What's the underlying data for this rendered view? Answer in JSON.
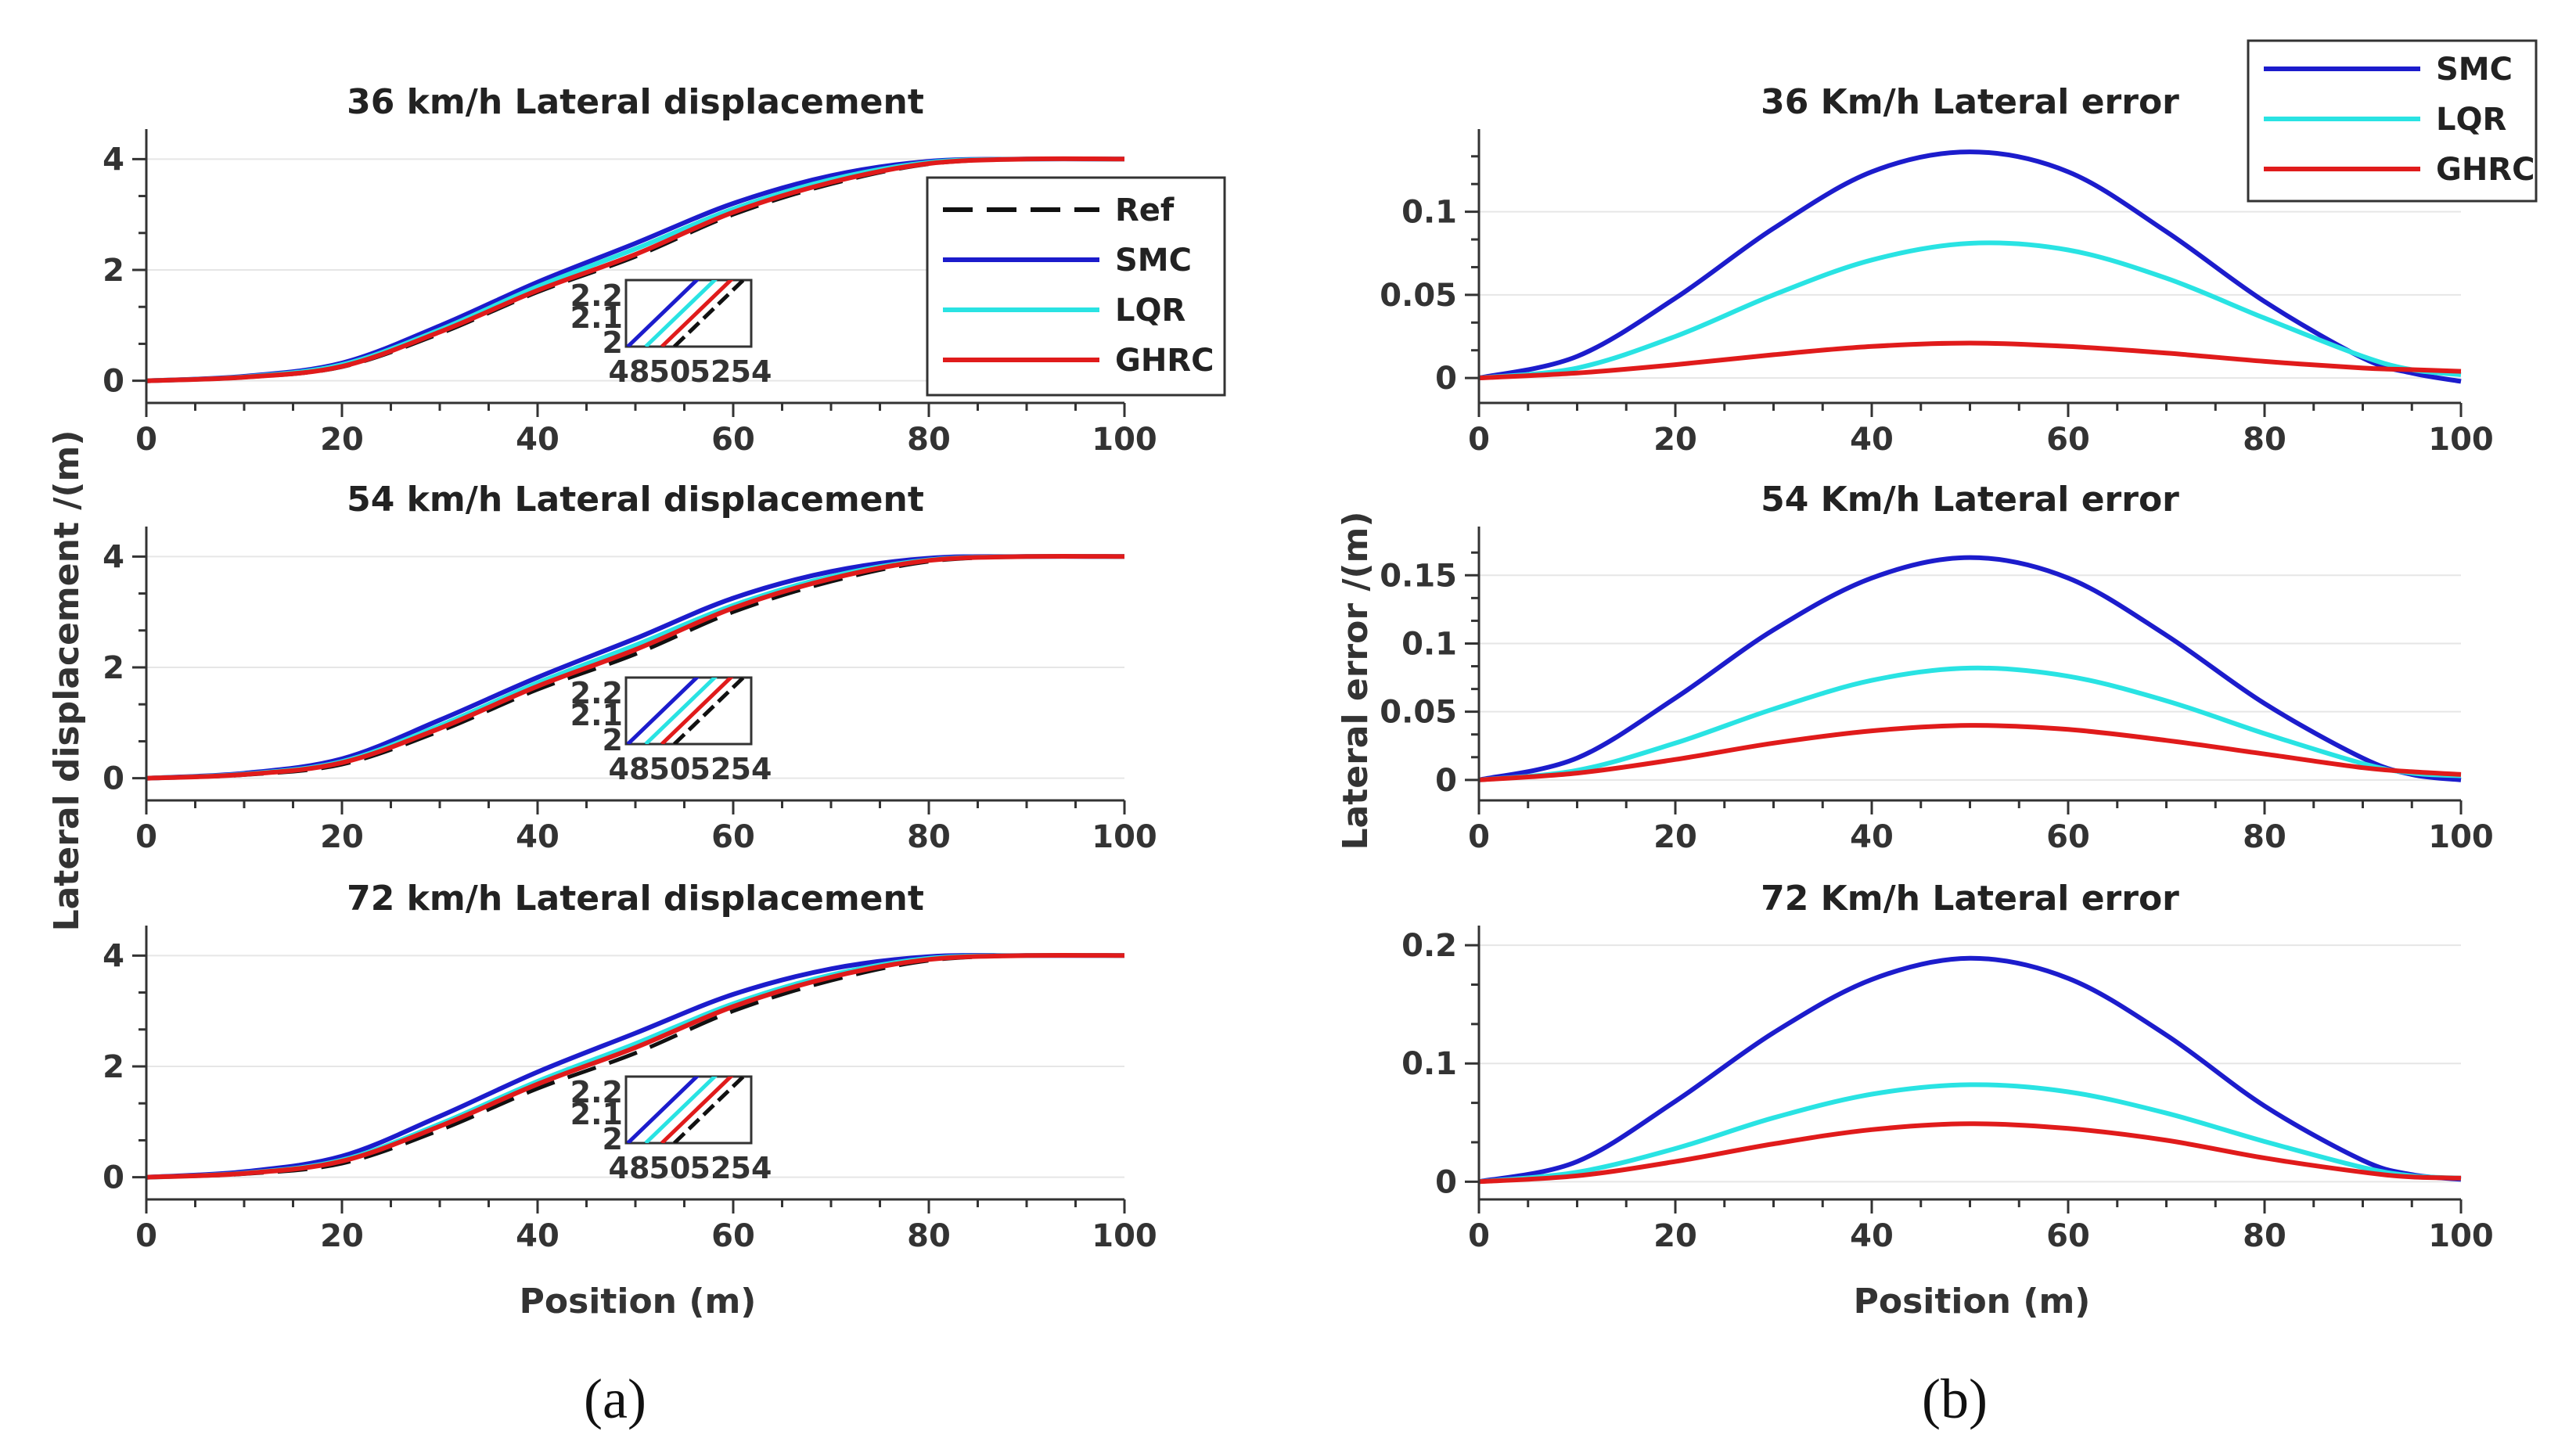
{
  "colors": {
    "Ref": "#111111",
    "SMC": "#1c1ccc",
    "LQR": "#29e3e3",
    "GHRC": "#e01b1b"
  },
  "panel_labels": {
    "a": "(a)",
    "b": "(b)"
  },
  "shared_labels": {
    "left_ylabel": "Lateral displacement /(m)",
    "right_ylabel": "Lateral error /(m)",
    "xlabel": "Position (m)"
  },
  "legends": {
    "left": [
      "Ref",
      "SMC",
      "LQR",
      "GHRC"
    ],
    "right": [
      "SMC",
      "LQR",
      "GHRC"
    ]
  },
  "chart_data": [
    {
      "id": "disp36",
      "type": "line",
      "title": "36 km/h Lateral displacement",
      "xlim": [
        0,
        100
      ],
      "ylim": [
        -0.4,
        4.4
      ],
      "xticks": [
        0,
        20,
        40,
        60,
        80,
        100
      ],
      "yticks": [
        0,
        2,
        4
      ],
      "x": [
        0,
        10,
        20,
        30,
        40,
        50,
        60,
        70,
        80,
        90,
        100
      ],
      "series": [
        {
          "name": "Ref",
          "values": [
            0,
            0.06,
            0.25,
            0.85,
            1.6,
            2.24,
            3.0,
            3.55,
            3.91,
            4.0,
            4.0
          ]
        },
        {
          "name": "SMC",
          "values": [
            0,
            0.08,
            0.32,
            0.99,
            1.78,
            2.48,
            3.2,
            3.7,
            3.96,
            4.0,
            4.0
          ]
        },
        {
          "name": "LQR",
          "values": [
            0,
            0.07,
            0.29,
            0.92,
            1.7,
            2.38,
            3.1,
            3.63,
            3.94,
            4.0,
            4.0
          ]
        },
        {
          "name": "GHRC",
          "values": [
            0,
            0.065,
            0.26,
            0.88,
            1.63,
            2.28,
            3.04,
            3.58,
            3.92,
            4.0,
            4.0
          ]
        }
      ],
      "inset": {
        "xticks": [
          48,
          50,
          52,
          54
        ],
        "yticks": [
          "2",
          "2.1",
          "2.2"
        ]
      }
    },
    {
      "id": "disp54",
      "type": "line",
      "title": "54 km/h Lateral displacement",
      "xlim": [
        0,
        100
      ],
      "ylim": [
        -0.4,
        4.4
      ],
      "xticks": [
        0,
        20,
        40,
        60,
        80,
        100
      ],
      "yticks": [
        0,
        2,
        4
      ],
      "x": [
        0,
        10,
        20,
        30,
        40,
        50,
        60,
        70,
        80,
        90,
        100
      ],
      "series": [
        {
          "name": "Ref",
          "values": [
            0,
            0.06,
            0.25,
            0.85,
            1.6,
            2.24,
            3.0,
            3.55,
            3.91,
            4.0,
            4.0
          ]
        },
        {
          "name": "SMC",
          "values": [
            0,
            0.09,
            0.35,
            1.05,
            1.82,
            2.52,
            3.25,
            3.73,
            3.97,
            4.0,
            4.0
          ]
        },
        {
          "name": "LQR",
          "values": [
            0,
            0.075,
            0.3,
            0.95,
            1.72,
            2.4,
            3.12,
            3.64,
            3.94,
            4.0,
            4.0
          ]
        },
        {
          "name": "GHRC",
          "values": [
            0,
            0.068,
            0.28,
            0.9,
            1.66,
            2.32,
            3.07,
            3.6,
            3.93,
            4.0,
            4.0
          ]
        }
      ],
      "inset": {
        "xticks": [
          48,
          50,
          52,
          54
        ],
        "yticks": [
          "2",
          "2.1",
          "2.2"
        ]
      }
    },
    {
      "id": "disp72",
      "type": "line",
      "title": "72 km/h Lateral displacement",
      "xlim": [
        0,
        100
      ],
      "ylim": [
        -0.4,
        4.4
      ],
      "xticks": [
        0,
        20,
        40,
        60,
        80,
        100
      ],
      "yticks": [
        0,
        2,
        4
      ],
      "x": [
        0,
        10,
        20,
        30,
        40,
        50,
        60,
        70,
        80,
        90,
        100
      ],
      "series": [
        {
          "name": "Ref",
          "values": [
            0,
            0.06,
            0.25,
            0.85,
            1.6,
            2.24,
            3.0,
            3.55,
            3.91,
            4.0,
            4.0
          ]
        },
        {
          "name": "SMC",
          "values": [
            0,
            0.1,
            0.38,
            1.1,
            1.9,
            2.6,
            3.3,
            3.76,
            3.98,
            4.0,
            4.0
          ]
        },
        {
          "name": "LQR",
          "values": [
            0,
            0.075,
            0.31,
            0.96,
            1.73,
            2.41,
            3.13,
            3.65,
            3.95,
            4.0,
            4.0
          ]
        },
        {
          "name": "GHRC",
          "values": [
            0,
            0.07,
            0.29,
            0.92,
            1.68,
            2.34,
            3.08,
            3.61,
            3.93,
            4.0,
            4.0
          ]
        }
      ],
      "inset": {
        "xticks": [
          48,
          50,
          52,
          54
        ],
        "yticks": [
          "2",
          "2.1",
          "2.2"
        ]
      }
    },
    {
      "id": "err36",
      "type": "line",
      "title": "36 Km/h Lateral error",
      "xlim": [
        0,
        100
      ],
      "ylim": [
        -0.015,
        0.145
      ],
      "xticks": [
        0,
        20,
        40,
        60,
        80,
        100
      ],
      "yticks": [
        0,
        0.05,
        0.1
      ],
      "yticklabels": [
        "0",
        "0.05",
        "0.1"
      ],
      "x": [
        0,
        10,
        20,
        30,
        40,
        50,
        60,
        70,
        80,
        90,
        95,
        100
      ],
      "series": [
        {
          "name": "SMC",
          "values": [
            0,
            0.013,
            0.048,
            0.09,
            0.124,
            0.136,
            0.124,
            0.088,
            0.046,
            0.012,
            0.003,
            -0.002
          ]
        },
        {
          "name": "LQR",
          "values": [
            0,
            0.006,
            0.025,
            0.05,
            0.071,
            0.081,
            0.077,
            0.06,
            0.036,
            0.013,
            0.005,
            0.002
          ]
        },
        {
          "name": "GHRC",
          "values": [
            0,
            0.003,
            0.008,
            0.014,
            0.019,
            0.021,
            0.019,
            0.015,
            0.01,
            0.006,
            0.005,
            0.004
          ]
        }
      ]
    },
    {
      "id": "err54",
      "type": "line",
      "title": "54 Km/h Lateral error",
      "xlim": [
        0,
        100
      ],
      "ylim": [
        -0.015,
        0.18
      ],
      "xticks": [
        0,
        20,
        40,
        60,
        80,
        100
      ],
      "yticks": [
        0,
        0.05,
        0.1,
        0.15
      ],
      "yticklabels": [
        "0",
        "0.05",
        "0.1",
        "0.15"
      ],
      "x": [
        0,
        10,
        20,
        30,
        40,
        50,
        60,
        70,
        80,
        90,
        95,
        100
      ],
      "series": [
        {
          "name": "SMC",
          "values": [
            0,
            0.016,
            0.06,
            0.11,
            0.148,
            0.163,
            0.148,
            0.106,
            0.056,
            0.016,
            0.004,
            0
          ]
        },
        {
          "name": "LQR",
          "values": [
            0,
            0.007,
            0.027,
            0.052,
            0.073,
            0.082,
            0.076,
            0.058,
            0.034,
            0.012,
            0.005,
            0.003
          ]
        },
        {
          "name": "GHRC",
          "values": [
            0,
            0.005,
            0.015,
            0.027,
            0.036,
            0.04,
            0.037,
            0.029,
            0.019,
            0.009,
            0.006,
            0.004
          ]
        }
      ]
    },
    {
      "id": "err72",
      "type": "line",
      "title": "72 Km/h Lateral error",
      "xlim": [
        0,
        100
      ],
      "ylim": [
        -0.015,
        0.21
      ],
      "xticks": [
        0,
        20,
        40,
        60,
        80,
        100
      ],
      "yticks": [
        0,
        0.1,
        0.2
      ],
      "yticklabels": [
        "0",
        "0.1",
        "0.2"
      ],
      "x": [
        0,
        10,
        20,
        30,
        40,
        50,
        60,
        70,
        80,
        90,
        95,
        100
      ],
      "series": [
        {
          "name": "SMC",
          "values": [
            0,
            0.017,
            0.068,
            0.126,
            0.171,
            0.189,
            0.172,
            0.124,
            0.064,
            0.018,
            0.006,
            0.002
          ]
        },
        {
          "name": "LQR",
          "values": [
            0,
            0.008,
            0.028,
            0.054,
            0.074,
            0.082,
            0.076,
            0.058,
            0.034,
            0.012,
            0.005,
            0.003
          ]
        },
        {
          "name": "GHRC",
          "values": [
            0,
            0.005,
            0.017,
            0.032,
            0.044,
            0.049,
            0.045,
            0.035,
            0.02,
            0.008,
            0.004,
            0.003
          ]
        }
      ]
    }
  ]
}
